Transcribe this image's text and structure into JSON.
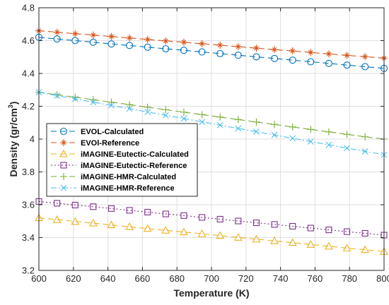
{
  "chart_data": {
    "type": "line",
    "xlabel": "Temperature (K)",
    "ylabel_main": "Density (gr/cm",
    "ylabel_sup": "3",
    "ylabel_close": ")",
    "xlim": [
      600,
      800
    ],
    "ylim": [
      3.2,
      4.8
    ],
    "x_ticks": [
      600,
      620,
      640,
      660,
      680,
      700,
      720,
      740,
      760,
      780,
      800
    ],
    "x_tick_labels": [
      "600",
      "620",
      "640",
      "660",
      "680",
      "700",
      "720",
      "740",
      "760",
      "780",
      "800"
    ],
    "y_ticks": [
      3.2,
      3.4,
      3.6,
      3.8,
      4.0,
      4.2,
      4.4,
      4.6,
      4.8
    ],
    "y_tick_labels": [
      "3.2",
      "3.4",
      "3.6",
      "3.8",
      "4",
      "4.2",
      "4.4",
      "4.6",
      "4.8"
    ],
    "grid": true,
    "legend_position": "middle-left",
    "x": [
      600,
      610.5,
      621,
      631.5,
      642,
      652.5,
      663,
      673.5,
      684,
      694.5,
      705,
      715.5,
      726,
      736.5,
      747,
      757.5,
      768,
      778.5,
      789,
      800
    ],
    "series": [
      {
        "name": "EVOL-Calculated",
        "color": "#0072BD",
        "line": "dashed",
        "marker": "circle",
        "values": [
          4.62,
          4.61,
          4.6,
          4.59,
          4.58,
          4.57,
          4.56,
          4.55,
          4.541,
          4.531,
          4.521,
          4.511,
          4.501,
          4.491,
          4.481,
          4.471,
          4.461,
          4.451,
          4.441,
          4.431
        ]
      },
      {
        "name": "EVOl-Reference",
        "color": "#D95319",
        "line": "dashed",
        "marker": "star",
        "values": [
          4.66,
          4.651,
          4.642,
          4.634,
          4.625,
          4.616,
          4.607,
          4.598,
          4.59,
          4.581,
          4.572,
          4.563,
          4.554,
          4.545,
          4.537,
          4.528,
          4.519,
          4.51,
          4.502,
          4.493
        ]
      },
      {
        "name": "iMAGINE-Eutectic-Calculated",
        "color": "#EDB120",
        "line": "dashed",
        "marker": "triangle",
        "values": [
          3.52,
          3.509,
          3.498,
          3.488,
          3.477,
          3.466,
          3.455,
          3.444,
          3.434,
          3.423,
          3.412,
          3.401,
          3.39,
          3.38,
          3.369,
          3.358,
          3.347,
          3.336,
          3.326,
          3.315
        ]
      },
      {
        "name": "iMAGINE-Eutectic-Reference",
        "color": "#7E2F8E",
        "line": "dotted",
        "marker": "square",
        "values": [
          3.62,
          3.609,
          3.598,
          3.588,
          3.577,
          3.566,
          3.555,
          3.544,
          3.534,
          3.523,
          3.512,
          3.501,
          3.49,
          3.48,
          3.469,
          3.458,
          3.447,
          3.436,
          3.426,
          3.415
        ]
      },
      {
        "name": "iMAGINE-HMR-Calculated",
        "color": "#77AC30",
        "line": "dashed",
        "marker": "plus",
        "values": [
          4.285,
          4.27,
          4.255,
          4.24,
          4.225,
          4.21,
          4.194,
          4.179,
          4.164,
          4.149,
          4.134,
          4.119,
          4.104,
          4.089,
          4.074,
          4.059,
          4.044,
          4.029,
          4.014,
          4.0
        ]
      },
      {
        "name": "iMAGINE-HMR-Reference",
        "color": "#4DBEEE",
        "line": "dashdot",
        "marker": "x",
        "values": [
          4.285,
          4.265,
          4.245,
          4.225,
          4.205,
          4.185,
          4.165,
          4.145,
          4.125,
          4.105,
          4.085,
          4.065,
          4.045,
          4.025,
          4.005,
          3.985,
          3.965,
          3.945,
          3.925,
          3.905
        ]
      }
    ]
  }
}
